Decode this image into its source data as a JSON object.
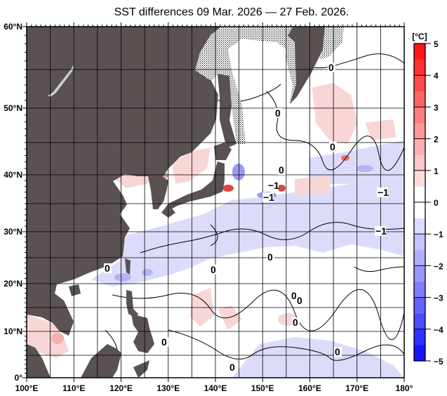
{
  "title": "SST differences 09 Mar. 2026 — 27 Feb. 2026.",
  "map": {
    "lon_range": [
      100,
      180
    ],
    "lat_range": [
      0,
      60
    ],
    "grid_step_deg": 5,
    "lat_labels": [
      {
        "lat": 60,
        "text": "60°N"
      },
      {
        "lat": 50,
        "text": "50°N"
      },
      {
        "lat": 40,
        "text": "40°N"
      },
      {
        "lat": 30,
        "text": "30°N"
      },
      {
        "lat": 20,
        "text": "20°N"
      },
      {
        "lat": 10,
        "text": "10°N"
      },
      {
        "lat": 0,
        "text": "0°"
      }
    ],
    "lon_labels": [
      {
        "lon": 100,
        "text": "100°E"
      },
      {
        "lon": 110,
        "text": "110°E"
      },
      {
        "lon": 120,
        "text": "120°E"
      },
      {
        "lon": 130,
        "text": "130°E"
      },
      {
        "lon": 140,
        "text": "140°E"
      },
      {
        "lon": 150,
        "text": "150°E"
      },
      {
        "lon": 160,
        "text": "160°E"
      },
      {
        "lon": 170,
        "text": "170°E"
      },
      {
        "lon": 180,
        "text": "180°"
      }
    ],
    "contour_labels": [
      "0",
      "0",
      "0",
      "0",
      "-1",
      "-1",
      "-1",
      "-1",
      "0",
      "0",
      "0",
      "0",
      "0",
      "0",
      "0",
      "0",
      "0"
    ],
    "colors": {
      "land": "#5a5252",
      "lake": "#cfcfcf",
      "ice_stipple": "#000000",
      "contour": "#000000"
    }
  },
  "colorbar": {
    "unit": "[°C]",
    "range": [
      -5,
      5
    ],
    "step": 0.5,
    "tick_labels": [
      "5",
      "4",
      "3",
      "2",
      "1",
      "0",
      "−1",
      "−2",
      "−3",
      "−4",
      "−5"
    ],
    "bin_colors": [
      "#1616ff",
      "#3030ff",
      "#4a4aff",
      "#6464ff",
      "#7e7eff",
      "#9898ff",
      "#b0b0ff",
      "#c4c4ff",
      "#dcdcff",
      "#ffffff",
      "#ffffff",
      "#ffdcdc",
      "#ffc4c4",
      "#ffb0b0",
      "#ff9898",
      "#ff7e7e",
      "#ff6464",
      "#ff4a4a",
      "#ff3030",
      "#ff1616"
    ]
  }
}
